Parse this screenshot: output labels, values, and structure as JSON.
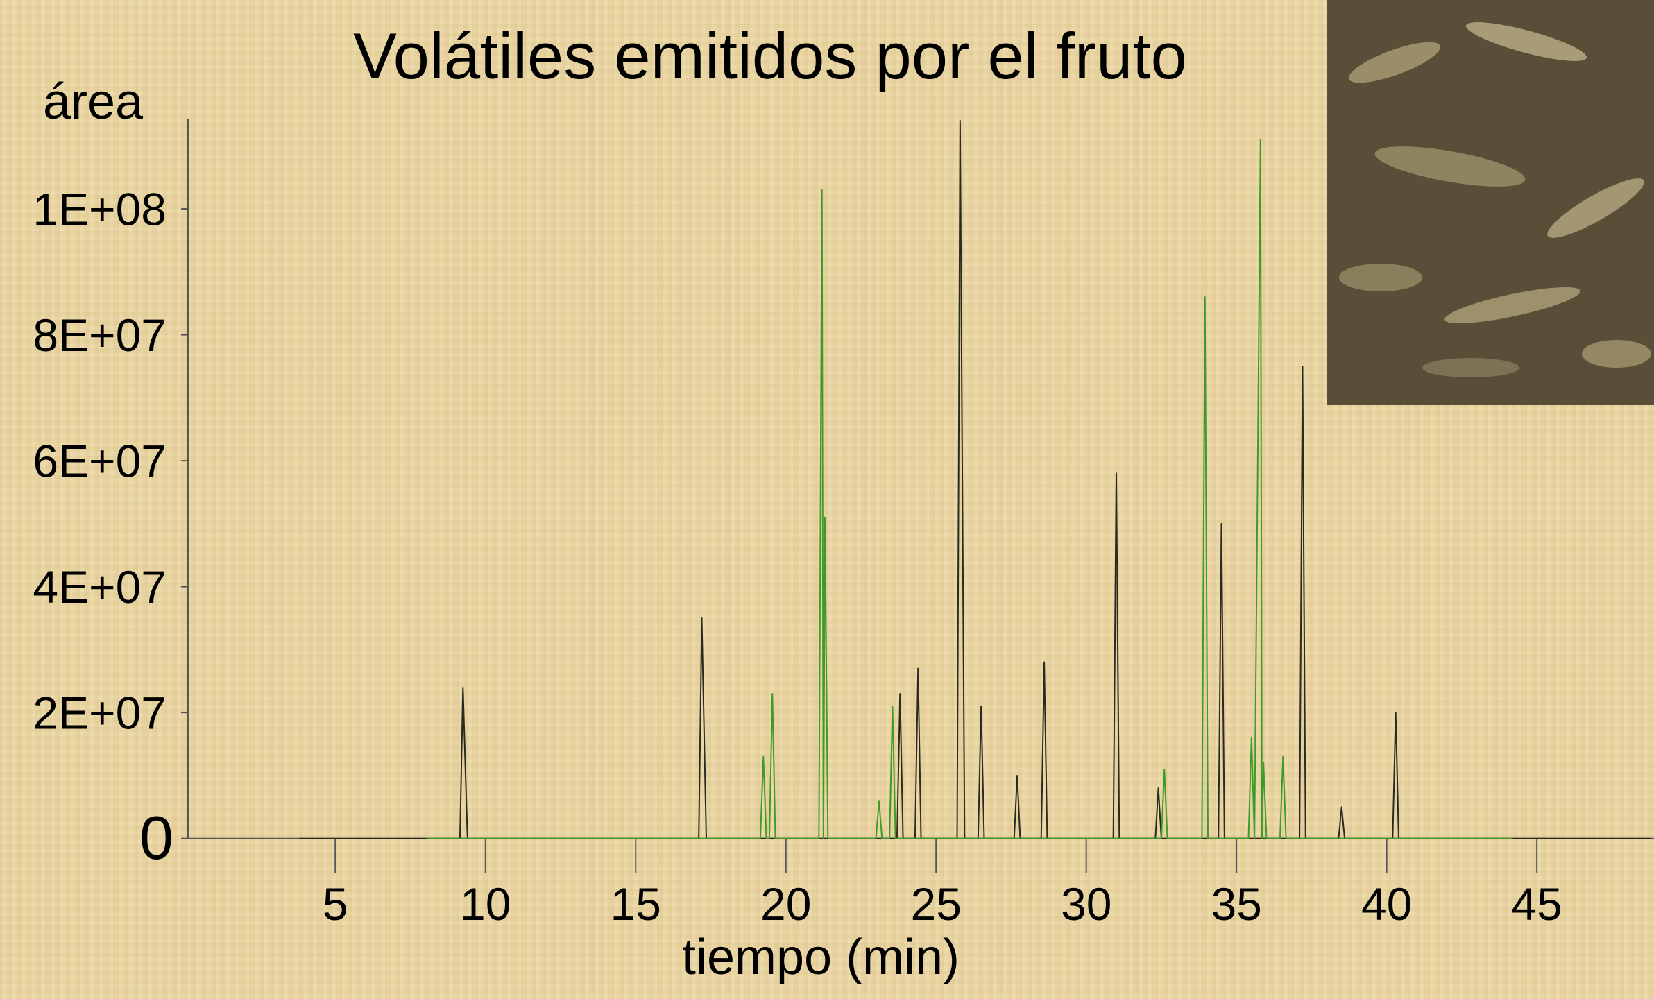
{
  "chart_data": {
    "type": "line",
    "title": "Volátiles emitidos por el fruto",
    "y_label": "área",
    "x_label": "tiempo (min)",
    "xlim": [
      0,
      48.9
    ],
    "xticks": [
      5,
      10,
      15,
      20,
      25,
      30,
      35,
      40,
      45
    ],
    "ylim": [
      0,
      114000000
    ],
    "yticks": [
      0,
      {
        "value": 20000000,
        "label": "2E+07"
      },
      {
        "value": 40000000,
        "label": "4E+07"
      },
      {
        "value": 60000000,
        "label": "6E+07"
      },
      {
        "value": 80000000,
        "label": "8E+07"
      },
      {
        "value": 100000000,
        "label": "1E+08"
      }
    ],
    "series": [
      {
        "color": "#2a2a22",
        "x": [
          3.8,
          9.15,
          9.25,
          9.4,
          17.1,
          17.2,
          17.35,
          23.7,
          23.8,
          23.9,
          24.3,
          24.4,
          24.5,
          25.7,
          25.8,
          25.95,
          26.4,
          26.5,
          26.6,
          27.6,
          27.7,
          27.8,
          28.5,
          28.6,
          28.7,
          30.9,
          31.0,
          31.1,
          32.3,
          32.4,
          32.5,
          34.4,
          34.5,
          34.6,
          37.1,
          37.2,
          37.3,
          38.4,
          38.5,
          38.6,
          40.2,
          40.3,
          40.4,
          48.8
        ],
        "values": [
          0,
          0,
          24000000,
          0,
          0,
          35000000,
          0,
          0,
          23000000,
          0,
          0,
          27000000,
          0,
          0,
          114000000,
          0,
          0,
          21000000,
          0,
          0,
          10000000,
          0,
          0,
          28000000,
          0,
          0,
          58000000,
          0,
          0,
          8000000,
          0,
          0,
          50000000,
          0,
          0,
          75000000,
          0,
          0,
          5000000,
          0,
          0,
          20000000,
          0,
          0
        ]
      },
      {
        "color": "#3f9a2a",
        "x": [
          8.05,
          19.15,
          19.25,
          19.35,
          19.45,
          19.55,
          19.65,
          21.1,
          21.2,
          21.25,
          21.3,
          21.4,
          23.0,
          23.1,
          23.2,
          23.45,
          23.55,
          23.65,
          32.5,
          32.6,
          32.7,
          33.85,
          33.95,
          34.05,
          35.4,
          35.5,
          35.6,
          35.8,
          35.85,
          35.9,
          36.0,
          36.45,
          36.55,
          36.65,
          44.2
        ],
        "values": [
          0,
          0,
          13000000,
          0,
          0,
          23000000,
          0,
          0,
          103000000,
          0,
          51000000,
          0,
          0,
          6000000,
          0,
          0,
          21000000,
          0,
          0,
          11000000,
          0,
          0,
          86000000,
          0,
          0,
          16000000,
          0,
          111000000,
          0,
          12000000,
          0,
          0,
          13000000,
          0,
          0
        ]
      }
    ]
  }
}
